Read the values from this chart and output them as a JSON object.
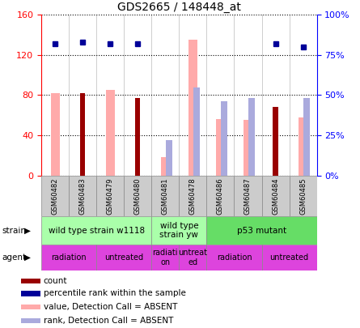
{
  "title": "GDS2665 / 148448_at",
  "samples": [
    "GSM60482",
    "GSM60483",
    "GSM60479",
    "GSM60480",
    "GSM60481",
    "GSM60478",
    "GSM60486",
    "GSM60487",
    "GSM60484",
    "GSM60485"
  ],
  "count_values": [
    null,
    82,
    null,
    77,
    null,
    null,
    null,
    null,
    68,
    null
  ],
  "percentile_rank": [
    82,
    83,
    82,
    82,
    null,
    null,
    null,
    null,
    82,
    80
  ],
  "absent_value": [
    82,
    null,
    85,
    null,
    18,
    135,
    56,
    55,
    null,
    58
  ],
  "absent_rank": [
    null,
    null,
    null,
    null,
    22,
    55,
    46,
    48,
    null,
    48
  ],
  "ylim_left": [
    0,
    160
  ],
  "ylim_right": [
    0,
    100
  ],
  "yticks_left": [
    0,
    40,
    80,
    120,
    160
  ],
  "yticks_right": [
    0,
    25,
    50,
    75,
    100
  ],
  "ytick_labels_right": [
    "0%",
    "25%",
    "50%",
    "75%",
    "100%"
  ],
  "color_count": "#990000",
  "color_percentile": "#000099",
  "color_absent_value": "#ffaaaa",
  "color_absent_rank": "#aaaadd",
  "strain_groups": [
    {
      "label": "wild type strain w1118",
      "cols": [
        0,
        1,
        2,
        3
      ],
      "color": "#aaffaa"
    },
    {
      "label": "wild type\nstrain yw",
      "cols": [
        4,
        5
      ],
      "color": "#aaffaa"
    },
    {
      "label": "p53 mutant",
      "cols": [
        6,
        7,
        8,
        9
      ],
      "color": "#66dd66"
    }
  ],
  "agent_groups": [
    {
      "label": "radiation",
      "cols": [
        0,
        1
      ]
    },
    {
      "label": "untreated",
      "cols": [
        2,
        3
      ]
    },
    {
      "label": "radiati\non",
      "cols": [
        4
      ]
    },
    {
      "label": "untreat\ned",
      "cols": [
        5
      ]
    },
    {
      "label": "radiation",
      "cols": [
        6,
        7
      ]
    },
    {
      "label": "untreated",
      "cols": [
        8,
        9
      ]
    }
  ],
  "agent_color": "#dd44dd",
  "legend_items": [
    {
      "label": "count",
      "color": "#990000"
    },
    {
      "label": "percentile rank within the sample",
      "color": "#000099"
    },
    {
      "label": "value, Detection Call = ABSENT",
      "color": "#ffaaaa"
    },
    {
      "label": "rank, Detection Call = ABSENT",
      "color": "#aaaadd"
    }
  ]
}
